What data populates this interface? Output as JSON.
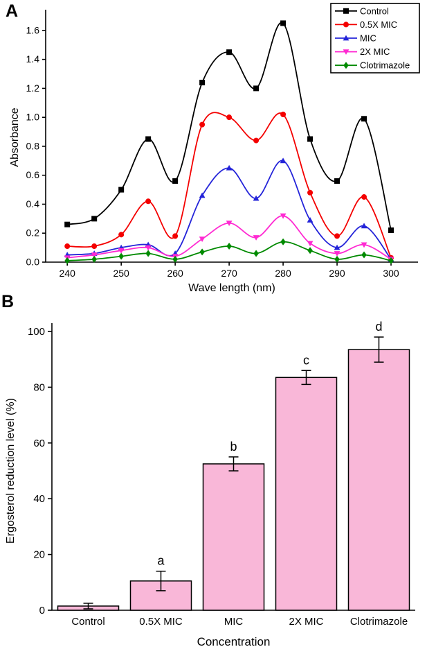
{
  "figure": {
    "background": "#ffffff"
  },
  "panels": {
    "a_label": "A",
    "b_label": "B"
  },
  "chart_data": [
    {
      "id": "uv-absorbance-spectra",
      "panel": "A",
      "type": "line",
      "xlabel": "Wave length (nm)",
      "ylabel": "Absorbance",
      "xlim": [
        236,
        305
      ],
      "ylim": [
        0,
        1.724
      ],
      "xticks": [
        240,
        250,
        260,
        270,
        280,
        290,
        300
      ],
      "yticks": [
        0.0,
        0.2,
        0.4,
        0.6,
        0.8,
        1.0,
        1.2,
        1.4,
        1.6
      ],
      "grid": false,
      "legend_position": "top-right",
      "x": [
        240,
        245,
        250,
        255,
        260,
        265,
        270,
        275,
        280,
        285,
        290,
        295,
        300
      ],
      "series": [
        {
          "name": "Control",
          "color": "#000000",
          "marker": "square",
          "values": [
            0.26,
            0.3,
            0.5,
            0.85,
            0.56,
            1.24,
            1.45,
            1.2,
            1.65,
            0.85,
            0.56,
            0.99,
            0.22
          ]
        },
        {
          "name": "0.5X MIC",
          "color": "#f40000",
          "marker": "circle",
          "values": [
            0.11,
            0.11,
            0.19,
            0.42,
            0.18,
            0.95,
            1.0,
            0.84,
            1.02,
            0.48,
            0.18,
            0.45,
            0.03
          ]
        },
        {
          "name": "MIC",
          "color": "#2424d9",
          "marker": "triangle-up",
          "values": [
            0.05,
            0.06,
            0.1,
            0.12,
            0.06,
            0.46,
            0.65,
            0.44,
            0.7,
            0.29,
            0.1,
            0.25,
            0.02
          ]
        },
        {
          "name": "2X MIC",
          "color": "#ff2ad2",
          "marker": "triangle-down",
          "values": [
            0.03,
            0.05,
            0.08,
            0.1,
            0.04,
            0.16,
            0.27,
            0.17,
            0.32,
            0.13,
            0.06,
            0.12,
            0.02
          ]
        },
        {
          "name": "Clotrimazole",
          "color": "#008a00",
          "marker": "diamond",
          "values": [
            0.01,
            0.02,
            0.04,
            0.06,
            0.02,
            0.07,
            0.11,
            0.06,
            0.14,
            0.08,
            0.02,
            0.05,
            0.01
          ]
        }
      ]
    },
    {
      "id": "ergosterol-reduction",
      "panel": "B",
      "type": "bar",
      "xlabel": "Concentration",
      "ylabel": "Ergosterol reduction level (%)",
      "ylim": [
        0,
        100
      ],
      "yticks": [
        0,
        20,
        40,
        60,
        80,
        100
      ],
      "grid": false,
      "categories": [
        "Control",
        "0.5X MIC",
        "MIC",
        "2X MIC",
        "Clotrimazole"
      ],
      "values": [
        1.5,
        10.5,
        52.5,
        83.5,
        93.5
      ],
      "errors": [
        1.0,
        3.5,
        2.5,
        2.5,
        4.5
      ],
      "sig_letters": [
        "",
        "a",
        "b",
        "c",
        "d"
      ],
      "bar_fill": "#f9b7d8",
      "bar_edge": "#000000"
    }
  ]
}
